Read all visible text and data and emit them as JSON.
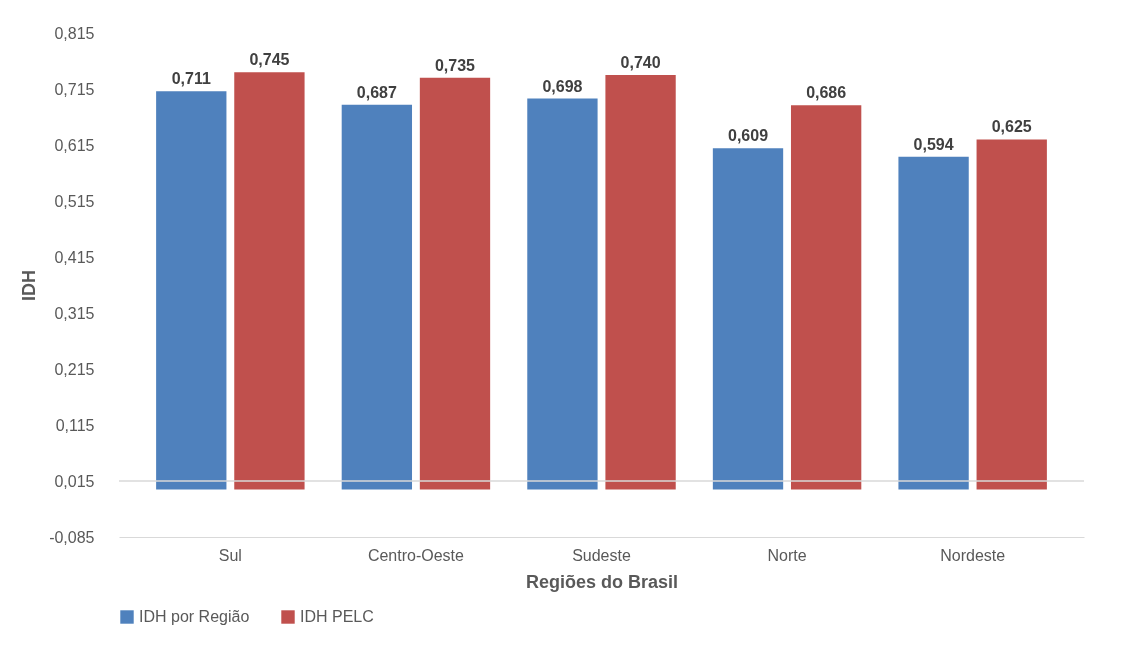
{
  "chart_data": {
    "type": "bar",
    "xlabel": "Regiões do Brasil",
    "ylabel": "IDH",
    "categories": [
      "Sul",
      "Centro-Oeste",
      "Sudeste",
      "Norte",
      "Nordeste"
    ],
    "series": [
      {
        "name": "IDH por Região",
        "color": "#4f81bd",
        "values": [
          0.711,
          0.687,
          0.698,
          0.609,
          0.594
        ],
        "value_labels": [
          "0,711",
          "0,687",
          "0,698",
          "0,609",
          "0,594"
        ]
      },
      {
        "name": "IDH PELC",
        "color": "#c0504d",
        "values": [
          0.745,
          0.735,
          0.74,
          0.686,
          0.625
        ],
        "value_labels": [
          "0,745",
          "0,735",
          "0,740",
          "0,686",
          "0,625"
        ]
      }
    ],
    "ylim": [
      -0.085,
      0.815
    ],
    "yticks": [
      {
        "value": -0.085,
        "label": "-0,085"
      },
      {
        "value": 0.015,
        "label": "0,015"
      },
      {
        "value": 0.115,
        "label": "0,115"
      },
      {
        "value": 0.215,
        "label": "0,215"
      },
      {
        "value": 0.315,
        "label": "0,315"
      },
      {
        "value": 0.415,
        "label": "0,415"
      },
      {
        "value": 0.515,
        "label": "0,515"
      },
      {
        "value": 0.615,
        "label": "0,615"
      },
      {
        "value": 0.715,
        "label": "0,715"
      },
      {
        "value": 0.815,
        "label": "0,815"
      }
    ],
    "ref_lines": [
      {
        "axis": "y",
        "value": 0.015
      }
    ],
    "grid": false,
    "legend": "bottom"
  }
}
